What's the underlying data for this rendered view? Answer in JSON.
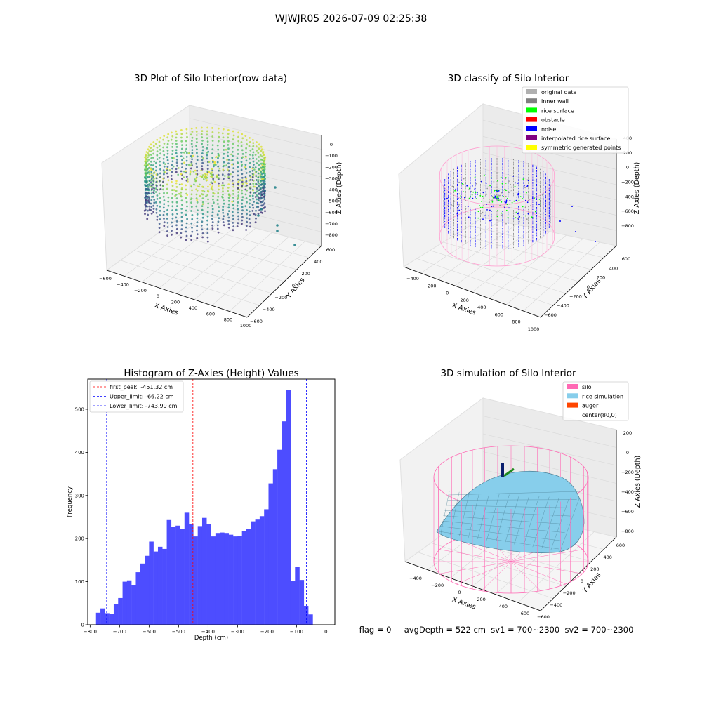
{
  "figure": {
    "suptitle": "WJWJR05 2026-07-09 02:25:38",
    "status_line": "flag = 0     avgDepth = 522 cm  sv1 = 700~2300  sv2 = 700~2300"
  },
  "panel_raw": {
    "title": "3D Plot of Silo Interior(row data)",
    "xlabel": "X Axies",
    "ylabel": "Y Axies",
    "zlabel": "Z Axies (Depth)",
    "xticks": [
      "−600",
      "−400",
      "−200",
      "0",
      "200",
      "400",
      "600",
      "800",
      "1000"
    ],
    "yticks": [
      "600",
      "400",
      "200",
      "0",
      "−200",
      "−400",
      "−600"
    ],
    "zticks": [
      "0",
      "−100",
      "−200",
      "−300",
      "−400",
      "−500",
      "−600",
      "−700",
      "−800"
    ],
    "colormap": "viridis"
  },
  "panel_classify": {
    "title": "3D classify of Silo Interior",
    "xlabel": "X Axies",
    "ylabel": "Y Axies",
    "zlabel": "Z Axies (Depth)",
    "xticks": [
      "−400",
      "−200",
      "0",
      "200",
      "400",
      "600",
      "800",
      "1000"
    ],
    "yticks": [
      "600",
      "400",
      "200",
      "0",
      "−200",
      "−400",
      "−600"
    ],
    "zticks": [
      "400",
      "200",
      "0",
      "−200",
      "−400",
      "−600",
      "−800"
    ],
    "legend": [
      {
        "label": "original data",
        "color": "#b0b0b0"
      },
      {
        "label": "inner wall",
        "color": "#808080"
      },
      {
        "label": "rice surface",
        "color": "#00ff00"
      },
      {
        "label": "obstacle",
        "color": "#ff0000"
      },
      {
        "label": "noise",
        "color": "#0000ff"
      },
      {
        "label": "interpolated rice surface",
        "color": "#800080"
      },
      {
        "label": "symmetric generated points",
        "color": "#ffff00"
      }
    ]
  },
  "panel_sim": {
    "title": "3D simulation of Silo Interior",
    "xlabel": "X Axies",
    "ylabel": "Y Axies",
    "zlabel": "Z Axies (Depth)",
    "xticks": [
      "−400",
      "−200",
      "0",
      "200",
      "400",
      "600"
    ],
    "yticks": [
      "600",
      "400",
      "200",
      "0",
      "−200",
      "−400",
      "−600"
    ],
    "zticks": [
      "200",
      "0",
      "−200",
      "−400",
      "−600",
      "−800"
    ],
    "legend": [
      {
        "label": "silo",
        "color": "#ff69b4"
      },
      {
        "label": "rice simulation",
        "color": "#87ceeb"
      },
      {
        "label": "auger",
        "color": "#ff4500"
      },
      {
        "label": "center(80,0)",
        "color": ""
      }
    ]
  },
  "chart_data": [
    {
      "type": "bar",
      "title": "Histogram of Z-Axies (Height) Values",
      "xlabel": "Depth (cm)",
      "ylabel": "Frequency",
      "xlim": [
        -808,
        30
      ],
      "ylim": [
        0,
        570
      ],
      "xticks": [
        -800,
        -700,
        -600,
        -500,
        -400,
        -300,
        -200,
        -100,
        0
      ],
      "yticks": [
        0,
        100,
        200,
        300,
        400,
        500
      ],
      "bin_start": -780,
      "bin_width": 15,
      "values": [
        28,
        38,
        27,
        26,
        48,
        62,
        100,
        103,
        92,
        122,
        142,
        160,
        193,
        170,
        181,
        176,
        243,
        228,
        230,
        222,
        260,
        234,
        205,
        229,
        248,
        233,
        205,
        213,
        214,
        213,
        209,
        205,
        206,
        218,
        222,
        240,
        244,
        252,
        268,
        328,
        361,
        406,
        472,
        545,
        102,
        134,
        104,
        44,
        24
      ],
      "bar_color": "#4d4dff",
      "vlines": [
        {
          "label": "first_peak: -451.32 cm",
          "x": -451.32,
          "color": "#ff0000"
        },
        {
          "label": "Upper_limit: -66.22 cm",
          "x": -66.22,
          "color": "#0000ff"
        },
        {
          "label": "Lower_limit: -743.99 cm",
          "x": -743.99,
          "color": "#0000ff"
        }
      ],
      "legend_position": "top-left"
    }
  ]
}
